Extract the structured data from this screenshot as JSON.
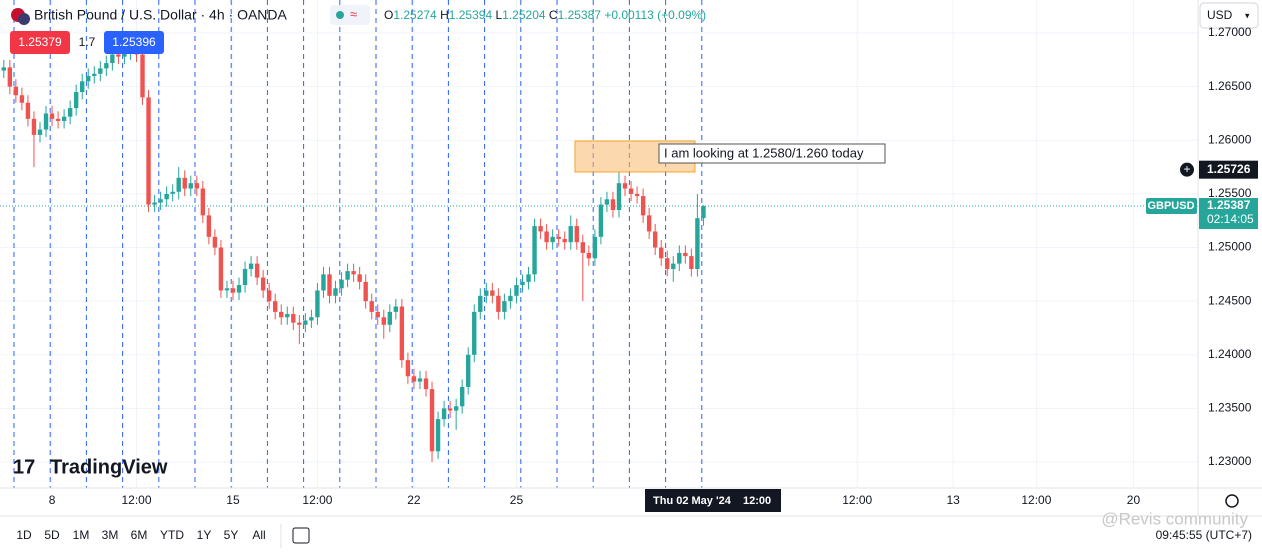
{
  "header": {
    "symbol": "British Pound / U.S. Dollar · 4h · OANDA",
    "ohlc_labels": [
      "O",
      "H",
      "L",
      "C"
    ],
    "change": "+0.00113 (+0.09%)",
    "sell": "1.25379",
    "spread": "1.7",
    "buy": "1.25396",
    "currency": "USD"
  },
  "chart_data": {
    "type": "candlestick",
    "open": [
      1.2665,
      1.2668,
      1.265,
      1.2642,
      1.2635,
      1.262,
      1.2605,
      1.261,
      1.2625,
      1.262,
      1.2618,
      1.2622,
      1.263,
      1.2645,
      1.2655,
      1.266,
      1.2662,
      1.2667,
      1.2672,
      1.268,
      1.2678,
      1.2682,
      1.2685,
      1.268,
      1.264,
      1.254,
      1.2542,
      1.2545,
      1.255,
      1.2552,
      1.2565,
      1.2555,
      1.256,
      1.2555,
      1.253,
      1.251,
      1.25,
      1.246,
      1.2462,
      1.2458,
      1.2465,
      1.248,
      1.2485,
      1.2472,
      1.246,
      1.245,
      1.244,
      1.2435,
      1.2438,
      1.243,
      1.2428,
      1.2432,
      1.2435,
      1.246,
      1.2475,
      1.2455,
      1.2462,
      1.247,
      1.2478,
      1.2475,
      1.2468,
      1.245,
      1.244,
      1.2435,
      1.2428,
      1.244,
      1.2445,
      1.2395,
      1.238,
      1.2375,
      1.2378,
      1.2368,
      1.231,
      1.234,
      1.235,
      1.2348,
      1.2352,
      1.237,
      1.24,
      1.244,
      1.2455,
      1.246,
      1.2455,
      1.244,
      1.245,
      1.2455,
      1.2465,
      1.2468,
      1.2475,
      1.252,
      1.2515,
      1.2505,
      1.251,
      1.2508,
      1.2505,
      1.252,
      1.2505,
      1.2495,
      1.249,
      1.251,
      1.254,
      1.2545,
      1.2535,
      1.256,
      1.2555,
      1.255,
      1.2548,
      1.253,
      1.2515,
      1.25,
      1.249,
      1.248,
      1.2485,
      1.2495,
      1.2492,
      1.248,
      1.25274
    ],
    "high": [
      1.2675,
      1.2675,
      1.2657,
      1.2649,
      1.2642,
      1.2627,
      1.2617,
      1.2632,
      1.2632,
      1.2627,
      1.2629,
      1.2637,
      1.2652,
      1.2662,
      1.2667,
      1.2669,
      1.2674,
      1.2679,
      1.2687,
      1.2687,
      1.2689,
      1.2692,
      1.2695,
      1.2687,
      1.2647,
      1.2549,
      1.2552,
      1.2557,
      1.2559,
      1.2575,
      1.2572,
      1.2567,
      1.2567,
      1.2562,
      1.2537,
      1.2517,
      1.2507,
      1.2469,
      1.2469,
      1.2472,
      1.2487,
      1.2492,
      1.2492,
      1.2479,
      1.2467,
      1.2457,
      1.2447,
      1.2445,
      1.2445,
      1.2437,
      1.2439,
      1.2442,
      1.2467,
      1.2482,
      1.2482,
      1.2469,
      1.2477,
      1.2485,
      1.2485,
      1.2482,
      1.2475,
      1.2457,
      1.2447,
      1.2442,
      1.2447,
      1.2452,
      1.2452,
      1.2402,
      1.2387,
      1.2385,
      1.2385,
      1.2375,
      1.2347,
      1.2357,
      1.2357,
      1.2359,
      1.2377,
      1.2407,
      1.2447,
      1.2462,
      1.2467,
      1.2467,
      1.2462,
      1.2457,
      1.2462,
      1.2472,
      1.2475,
      1.2482,
      1.2527,
      1.2527,
      1.2522,
      1.2517,
      1.2517,
      1.2515,
      1.253,
      1.2527,
      1.2512,
      1.2502,
      1.2517,
      1.2547,
      1.2552,
      1.2552,
      1.257,
      1.2567,
      1.2562,
      1.2557,
      1.2555,
      1.2537,
      1.2522,
      1.2507,
      1.2497,
      1.2492,
      1.2502,
      1.2502,
      1.2499,
      1.255,
      1.25394
    ],
    "low": [
      1.2658,
      1.2643,
      1.2635,
      1.2628,
      1.2613,
      1.2575,
      1.2598,
      1.2603,
      1.2613,
      1.2611,
      1.2611,
      1.2615,
      1.2623,
      1.2638,
      1.2648,
      1.2653,
      1.2655,
      1.266,
      1.2665,
      1.2671,
      1.2671,
      1.2675,
      1.2673,
      1.2633,
      1.2533,
      1.2533,
      1.2535,
      1.2538,
      1.2543,
      1.2545,
      1.2548,
      1.2548,
      1.2548,
      1.2523,
      1.2503,
      1.2493,
      1.2453,
      1.2453,
      1.2451,
      1.2451,
      1.2458,
      1.2473,
      1.2465,
      1.2453,
      1.2443,
      1.2433,
      1.2428,
      1.2428,
      1.2423,
      1.241,
      1.2421,
      1.2425,
      1.2428,
      1.2453,
      1.2448,
      1.2448,
      1.2455,
      1.2463,
      1.2468,
      1.2461,
      1.2443,
      1.2433,
      1.2428,
      1.2415,
      1.2421,
      1.2433,
      1.2388,
      1.2373,
      1.2368,
      1.2368,
      1.2361,
      1.23,
      1.2303,
      1.2333,
      1.2341,
      1.233,
      1.2345,
      1.2363,
      1.2393,
      1.2433,
      1.2448,
      1.2448,
      1.2433,
      1.2433,
      1.2443,
      1.2448,
      1.2458,
      1.2461,
      1.2468,
      1.2508,
      1.2498,
      1.2498,
      1.2501,
      1.2498,
      1.2498,
      1.2498,
      1.245,
      1.2483,
      1.2483,
      1.2503,
      1.2533,
      1.2528,
      1.2528,
      1.2548,
      1.2543,
      1.2541,
      1.2523,
      1.2508,
      1.2493,
      1.2483,
      1.2473,
      1.2468,
      1.2478,
      1.2485,
      1.2473,
      1.2473,
      1.25204
    ],
    "close": [
      1.2668,
      1.265,
      1.2642,
      1.2635,
      1.262,
      1.2605,
      1.261,
      1.2625,
      1.262,
      1.2618,
      1.2622,
      1.263,
      1.2645,
      1.2655,
      1.266,
      1.2662,
      1.2667,
      1.2672,
      1.268,
      1.2678,
      1.2682,
      1.2685,
      1.268,
      1.264,
      1.254,
      1.2542,
      1.2545,
      1.255,
      1.2552,
      1.2565,
      1.2555,
      1.256,
      1.2555,
      1.253,
      1.251,
      1.25,
      1.246,
      1.2462,
      1.2458,
      1.2465,
      1.248,
      1.2485,
      1.2472,
      1.246,
      1.245,
      1.244,
      1.2435,
      1.2438,
      1.243,
      1.2428,
      1.2432,
      1.2435,
      1.246,
      1.2475,
      1.2455,
      1.2462,
      1.247,
      1.2478,
      1.2475,
      1.2468,
      1.245,
      1.244,
      1.2435,
      1.2428,
      1.244,
      1.2445,
      1.2395,
      1.238,
      1.2375,
      1.2378,
      1.2368,
      1.231,
      1.234,
      1.235,
      1.2348,
      1.2352,
      1.237,
      1.24,
      1.244,
      1.2455,
      1.246,
      1.2455,
      1.244,
      1.245,
      1.2455,
      1.2465,
      1.2468,
      1.2475,
      1.252,
      1.2515,
      1.2505,
      1.251,
      1.2508,
      1.2505,
      1.252,
      1.2505,
      1.2495,
      1.249,
      1.251,
      1.254,
      1.2545,
      1.2535,
      1.256,
      1.2555,
      1.255,
      1.2548,
      1.253,
      1.2515,
      1.25,
      1.249,
      1.248,
      1.2485,
      1.2495,
      1.2492,
      1.248,
      1.25274,
      1.25387
    ],
    "up_color": "#26a69a",
    "down_color": "#ef5350",
    "ylim": [
      1.22758,
      1.27308
    ],
    "yticks": [
      {
        "value": 1.27,
        "label": "1.27000"
      },
      {
        "value": 1.265,
        "label": "1.26500"
      },
      {
        "value": 1.26,
        "label": "1.26000"
      },
      {
        "value": 1.255,
        "label": "1.25500"
      },
      {
        "value": 1.25,
        "label": "1.25000"
      },
      {
        "value": 1.245,
        "label": "1.24500"
      },
      {
        "value": 1.24,
        "label": "1.24000"
      },
      {
        "value": 1.235,
        "label": "1.23500"
      },
      {
        "value": 1.23,
        "label": "1.23000"
      }
    ],
    "xlim": [
      -0.63,
      198.0
    ],
    "xticks": [
      {
        "value": 8,
        "label": "8"
      },
      {
        "value": 22,
        "label": "12:00"
      },
      {
        "value": 38,
        "label": "15"
      },
      {
        "value": 52,
        "label": "12:00"
      },
      {
        "value": 68,
        "label": "22"
      },
      {
        "value": 85,
        "label": "25"
      },
      {
        "value": 141.5,
        "label": "12:00"
      },
      {
        "value": 157.4,
        "label": "13"
      },
      {
        "value": 171.2,
        "label": "12:00"
      },
      {
        "value": 187.3,
        "label": "20"
      }
    ],
    "grid": true,
    "crosshair_price": 1.25726,
    "symbol_label": "GBPUSD",
    "countdown": "02:14:05",
    "cursor_label": "Thu 02 May '24",
    "cursor_time": "12:00",
    "annotation": "I am looking at 1.2580/1.260 today"
  },
  "toolbar": {
    "periods": [
      "1D",
      "5D",
      "1M",
      "3M",
      "6M",
      "YTD",
      "1Y",
      "5Y",
      "All"
    ],
    "clock": "09:45:55 (UTC+7)"
  },
  "brand": "TradingView",
  "watermark": "@Revis community"
}
